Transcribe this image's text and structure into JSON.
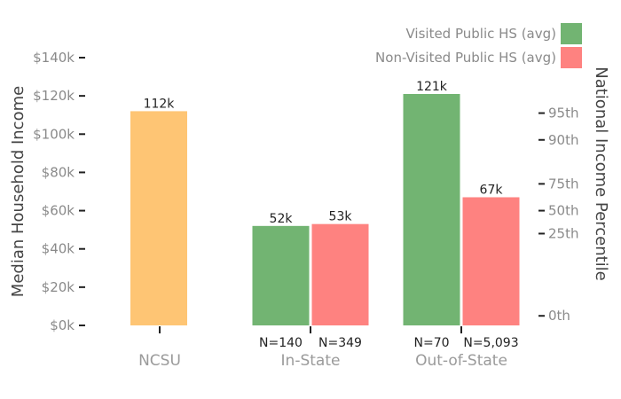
{
  "chart_data": {
    "type": "bar",
    "ylabel": "Median Household Income",
    "y2label": "National Income Percentile",
    "ylim": [
      0,
      140000
    ],
    "yticks": [
      {
        "value": 0,
        "label": "$0k"
      },
      {
        "value": 20000,
        "label": "$20k"
      },
      {
        "value": 40000,
        "label": "$40k"
      },
      {
        "value": 60000,
        "label": "$60k"
      },
      {
        "value": 80000,
        "label": "$80k"
      },
      {
        "value": 100000,
        "label": "$100k"
      },
      {
        "value": 120000,
        "label": "$120k"
      },
      {
        "value": 140000,
        "label": "$140k"
      }
    ],
    "right_ticks": [
      {
        "label": "0th",
        "income": 5000
      },
      {
        "label": "25th",
        "income": 48000
      },
      {
        "label": "50th",
        "income": 60000
      },
      {
        "label": "75th",
        "income": 74000
      },
      {
        "label": "90th",
        "income": 97000
      },
      {
        "label": "95th",
        "income": 111000
      }
    ],
    "categories": [
      {
        "label": "NCSU",
        "tick_offset": 0
      },
      {
        "label": "In-State",
        "tick_offset": 0
      },
      {
        "label": "Out-of-State",
        "tick_offset": 0
      }
    ],
    "bars": [
      {
        "category": 0,
        "slot": 0,
        "slots": 1,
        "series": "NCSU",
        "value": 112000,
        "label": "112k",
        "n_label": ""
      },
      {
        "category": 1,
        "slot": 0,
        "slots": 2,
        "series": "Visited Public HS (avg)",
        "value": 52000,
        "label": "52k",
        "n_label": "N=140"
      },
      {
        "category": 1,
        "slot": 1,
        "slots": 2,
        "series": "Non-Visited Public HS (avg)",
        "value": 53000,
        "label": "53k",
        "n_label": "N=349"
      },
      {
        "category": 2,
        "slot": 0,
        "slots": 2,
        "series": "Visited Public HS (avg)",
        "value": 121000,
        "label": "121k",
        "n_label": "N=70"
      },
      {
        "category": 2,
        "slot": 1,
        "slots": 2,
        "series": "Non-Visited Public HS (avg)",
        "value": 67000,
        "label": "67k",
        "n_label": "N=5,093"
      }
    ],
    "series_colors": {
      "NCSU": "#fec574",
      "Visited Public HS (avg)": "#72b472",
      "Non-Visited Public HS (avg)": "#fe8280"
    },
    "legend": [
      {
        "name": "Visited Public HS (avg)",
        "color": "#72b472"
      },
      {
        "name": "Non-Visited Public HS (avg)",
        "color": "#fe8280"
      }
    ],
    "legend_position": "top-right"
  }
}
